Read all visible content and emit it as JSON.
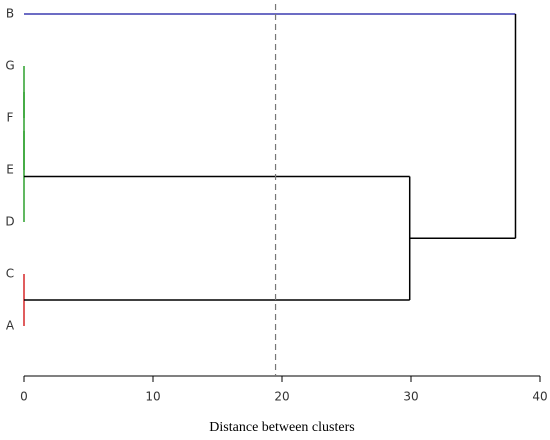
{
  "chart_data": {
    "type": "dendrogram",
    "leaves": [
      "B",
      "G",
      "F",
      "E",
      "D",
      "C",
      "A"
    ],
    "leaf_colors": [
      "#3b3bb0",
      "#2ca02c",
      "#2ca02c",
      "#2ca02c",
      "#2ca02c",
      "#d62728",
      "#d62728"
    ],
    "merges": [
      {
        "children": [
          1,
          2
        ],
        "height": 0,
        "color": "#2ca02c"
      },
      {
        "children": [
          7,
          3
        ],
        "height": 0,
        "color": "#2ca02c"
      },
      {
        "children": [
          8,
          4
        ],
        "height": 0,
        "color": "#2ca02c"
      },
      {
        "children": [
          5,
          6
        ],
        "height": 0,
        "color": "#d62728"
      },
      {
        "children": [
          9,
          10
        ],
        "height": 29.9,
        "color": "#000000"
      },
      {
        "children": [
          0,
          11
        ],
        "height": 38.1,
        "color": "#000000"
      }
    ],
    "threshold": 19.5,
    "threshold_color": "#777777",
    "xlim": [
      0,
      40
    ],
    "xticks": [
      0,
      10,
      20,
      30,
      40
    ],
    "x_label": "Distance between clusters"
  }
}
